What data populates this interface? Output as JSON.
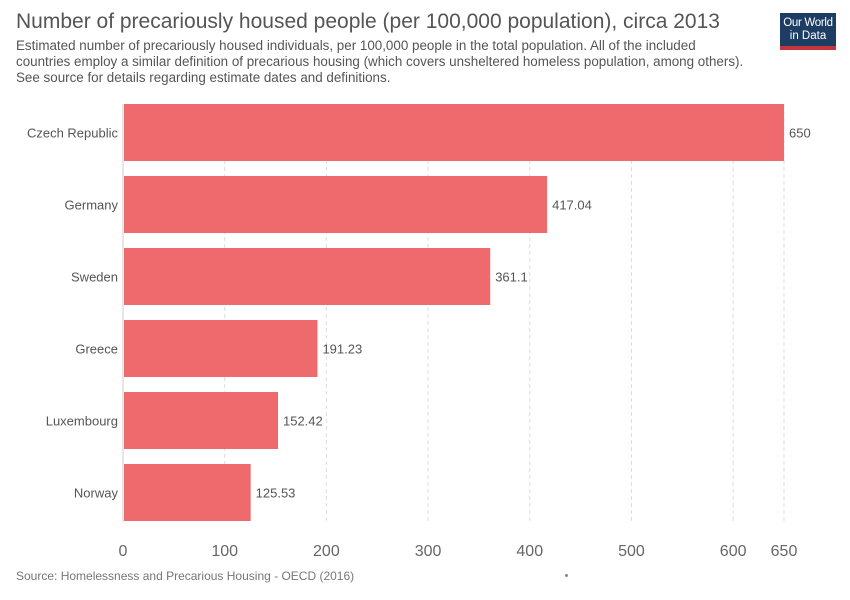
{
  "header": {
    "title": "Number of precariously housed people (per 100,000 population), circa 2013",
    "subtitle": "Estimated number of precariously housed individuals, per 100,000 people in the total population. All of the included countries employ a similar definition of precarious housing (which covers unsheltered homeless population, among others). See source for details regarding estimate dates and definitions."
  },
  "logo": {
    "line1": "Our World",
    "line2": "in Data"
  },
  "footer": {
    "source": "Source: Homelessness and Precarious Housing - OECD (2016)"
  },
  "chart_data": {
    "type": "bar",
    "orientation": "horizontal",
    "categories": [
      "Czech Republic",
      "Germany",
      "Sweden",
      "Greece",
      "Luxembourg",
      "Norway"
    ],
    "values": [
      650,
      417.04,
      361.1,
      191.23,
      152.42,
      125.53
    ],
    "value_labels": [
      "650",
      "417.04",
      "361.1",
      "191.23",
      "152.42",
      "125.53"
    ],
    "xlim": [
      0,
      650
    ],
    "xticks": [
      0,
      100,
      200,
      300,
      400,
      500,
      600,
      650
    ],
    "grid": true,
    "bar_color": "#ef6a6c"
  }
}
